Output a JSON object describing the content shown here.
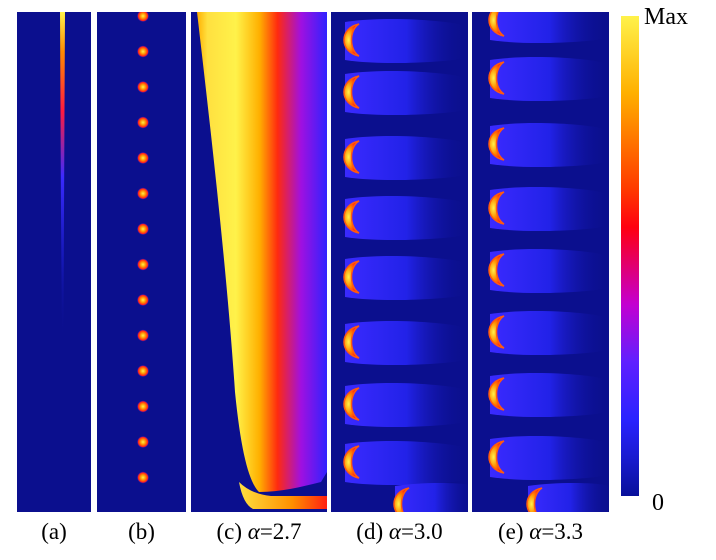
{
  "panels": [
    {
      "id": "a",
      "label": "(a)",
      "alpha_symbol": "",
      "alpha_value": ""
    },
    {
      "id": "b",
      "label": "(b)",
      "alpha_symbol": "",
      "alpha_value": ""
    },
    {
      "id": "c",
      "label": "(c)",
      "alpha_symbol": "α",
      "alpha_value": "=2.7"
    },
    {
      "id": "d",
      "label": "(d)",
      "alpha_symbol": "α",
      "alpha_value": "=3.0"
    },
    {
      "id": "e",
      "label": "(e)",
      "alpha_symbol": "α",
      "alpha_value": "=3.3"
    }
  ],
  "colorbar": {
    "max_label": "Max",
    "min_label": "0"
  },
  "colors": {
    "background": "#0b0f8e",
    "hot": "#fff24a",
    "mid": "#ff2a00",
    "cool": "#2a22ff"
  }
}
